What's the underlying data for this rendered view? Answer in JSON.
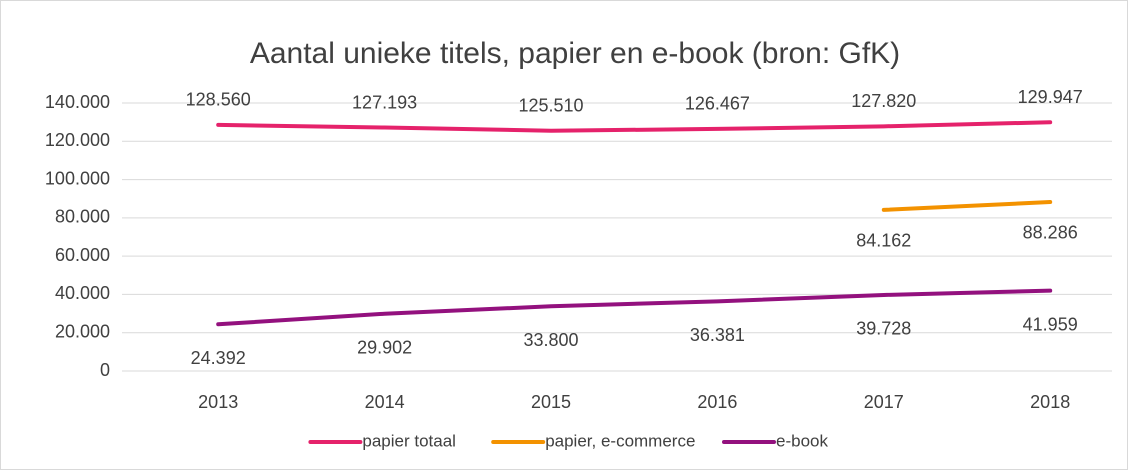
{
  "chart_data": {
    "type": "line",
    "title": "Aantal unieke titels, papier en e-book (bron: GfK)",
    "categories": [
      "2013",
      "2014",
      "2015",
      "2016",
      "2017",
      "2018"
    ],
    "series": [
      {
        "name": "papier totaal",
        "color": "#e5226b",
        "values": [
          128560,
          127193,
          125510,
          126467,
          127820,
          129947
        ],
        "value_labels": [
          "128.560",
          "127.193",
          "125.510",
          "126.467",
          "127.820",
          "129.947"
        ]
      },
      {
        "name": "papier, e-commerce",
        "color": "#f39200",
        "values": [
          null,
          null,
          null,
          null,
          84162,
          88286
        ],
        "value_labels": [
          null,
          null,
          null,
          null,
          "84.162",
          "88.286"
        ]
      },
      {
        "name": "e-book",
        "color": "#93117e",
        "values": [
          24392,
          29902,
          33800,
          36381,
          39728,
          41959
        ],
        "value_labels": [
          "24.392",
          "29.902",
          "33.800",
          "36.381",
          "39.728",
          "41.959"
        ]
      }
    ],
    "ylim": [
      0,
      140000
    ],
    "yticks": [
      0,
      {
        "value": 20000,
        "label": "20.000"
      },
      {
        "value": 40000,
        "label": "40.000"
      },
      {
        "value": 60000,
        "label": "60.000"
      },
      {
        "value": 80000,
        "label": "80.000"
      },
      {
        "value": 100000,
        "label": "100.000"
      },
      {
        "value": 120000,
        "label": "120.000"
      },
      {
        "value": 140000,
        "label": "140.000"
      }
    ],
    "grid": true,
    "legend": "bottom"
  }
}
